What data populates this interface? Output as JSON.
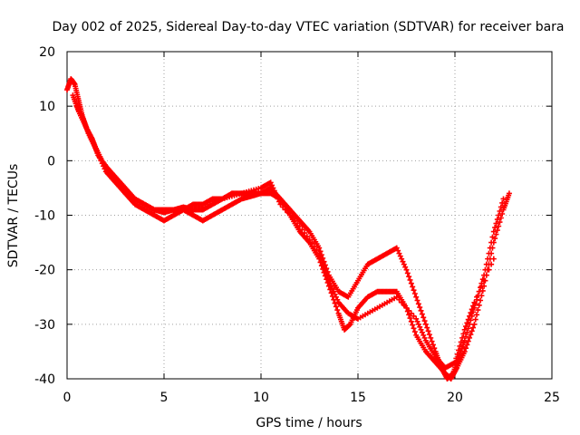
{
  "chart_data": {
    "type": "scatter",
    "title": "Day 002 of 2025, Sidereal Day-to-day VTEC variation (SDTVAR) for receiver bara",
    "xlabel": "GPS time / hours",
    "ylabel": "SDTVAR / TECUs",
    "xlim": [
      0,
      25
    ],
    "ylim": [
      -40,
      20
    ],
    "xticks": [
      0,
      5,
      10,
      15,
      20,
      25
    ],
    "yticks": [
      -40,
      -30,
      -20,
      -10,
      0,
      10,
      20
    ],
    "grid": true,
    "marker": "plus",
    "color": "#ff0000",
    "series": [
      {
        "x": [
          0.0,
          0.2,
          0.4,
          0.6,
          0.8,
          1.0,
          1.3,
          1.6,
          2.0,
          2.5,
          3.0,
          3.5,
          4.0,
          4.5,
          5.0,
          5.5,
          6.0,
          6.5,
          7.0,
          7.5,
          8.0,
          8.5,
          9.0,
          9.5,
          10.0,
          10.5,
          11.0,
          11.5,
          12.0,
          12.5,
          13.0,
          13.5,
          14.0,
          14.5,
          15.0,
          15.5,
          16.0,
          16.5,
          17.0,
          17.5,
          18.0,
          18.5,
          19.0,
          19.3,
          19.6,
          19.9,
          20.2,
          20.5,
          21.0,
          21.5,
          22.0,
          22.5
        ],
        "y": [
          13,
          15,
          14,
          11,
          8,
          6,
          4,
          1,
          -1,
          -3,
          -5,
          -7,
          -8,
          -9,
          -9.5,
          -9,
          -9,
          -8,
          -8,
          -7,
          -7,
          -6,
          -6,
          -6,
          -6,
          -6,
          -7,
          -9,
          -11,
          -13,
          -16,
          -21,
          -24,
          -25,
          -22,
          -19,
          -18,
          -17,
          -16,
          -20,
          -25,
          -30,
          -35,
          -38,
          -40,
          -39,
          -36,
          -33,
          -27,
          -21,
          -13,
          -7
        ]
      },
      {
        "x": [
          0.3,
          0.6,
          1.0,
          1.4,
          1.8,
          2.2,
          2.6,
          3.0,
          3.5,
          4.0,
          4.5,
          5.0,
          5.5,
          6.0,
          6.5,
          7.0,
          7.5,
          8.0,
          8.5,
          9.0,
          9.5,
          10.0,
          10.5,
          11.0,
          11.5,
          12.0,
          12.5,
          13.0,
          13.5,
          14.0,
          14.3,
          14.6,
          15.0,
          15.5,
          16.0,
          16.5,
          17.0,
          17.5,
          18.0,
          18.5,
          19.0,
          19.5,
          19.8,
          20.1,
          20.5,
          21.0,
          21.5,
          22.0,
          22.5,
          22.8
        ],
        "y": [
          12,
          9,
          6,
          3,
          0,
          -2,
          -4,
          -6,
          -8,
          -9,
          -10,
          -11,
          -10,
          -9,
          -10,
          -11,
          -10,
          -9,
          -8,
          -7,
          -6.5,
          -6,
          -5,
          -7,
          -10,
          -13,
          -15,
          -18,
          -23,
          -28,
          -31,
          -30,
          -27,
          -25,
          -24,
          -24,
          -24,
          -27,
          -32,
          -35,
          -37,
          -39,
          -40,
          -38,
          -35,
          -30,
          -23,
          -15,
          -9,
          -6
        ]
      },
      {
        "x": [
          0.5,
          0.8,
          1.1,
          1.5,
          2.0,
          2.5,
          3.0,
          3.5,
          4.0,
          4.5,
          5.0,
          5.5,
          6.0,
          6.5,
          7.0,
          7.5,
          8.0,
          9.0,
          10.0,
          10.5,
          11.0,
          12.0,
          13.0,
          13.5,
          14.0,
          14.5,
          15.0,
          16.0,
          17.0,
          18.0,
          18.5,
          19.0,
          19.5,
          20.0,
          20.5,
          21.0,
          22.0
        ],
        "y": [
          10,
          8,
          5,
          2,
          -2,
          -4,
          -6,
          -7,
          -8,
          -9,
          -9,
          -9,
          -8.5,
          -9,
          -9,
          -8,
          -7,
          -6,
          -5,
          -4,
          -8,
          -12,
          -17,
          -22,
          -26,
          -28,
          -29,
          -27,
          -25,
          -29,
          -33,
          -36,
          -38,
          -37,
          -31,
          -26,
          -18
        ]
      }
    ]
  }
}
